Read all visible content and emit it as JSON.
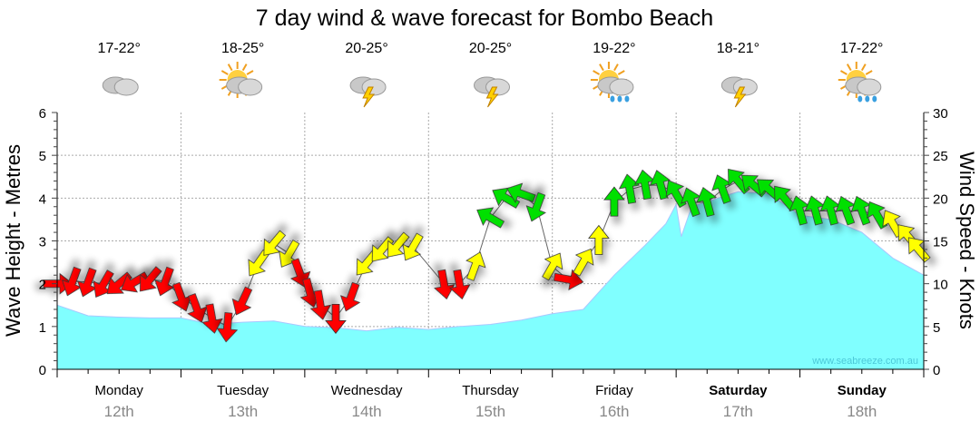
{
  "chart_data": {
    "type": "area",
    "title": "7 day wind & wave forecast for Bombo Beach",
    "ylabel_left": "Wave Height - Metres",
    "ylabel_right": "Wind Speed - Knots",
    "ylim_left": [
      0,
      6
    ],
    "ylim_right": [
      0,
      30
    ],
    "yticks_left": [
      "0",
      "1",
      "2",
      "3",
      "4",
      "5",
      "6"
    ],
    "yticks_right": [
      "0",
      "5",
      "10",
      "15",
      "20",
      "25",
      "30"
    ],
    "grid": true,
    "watermark": "www.seabreeze.com.au",
    "days": [
      {
        "name": "Monday",
        "date": "12th",
        "temp": "17-22°",
        "weather": "cloudy",
        "bold": false
      },
      {
        "name": "Tuesday",
        "date": "13th",
        "temp": "18-25°",
        "weather": "partly-cloudy",
        "bold": false
      },
      {
        "name": "Wednesday",
        "date": "14th",
        "temp": "20-25°",
        "weather": "storm",
        "bold": false
      },
      {
        "name": "Thursday",
        "date": "15th",
        "temp": "20-25°",
        "weather": "storm",
        "bold": false
      },
      {
        "name": "Friday",
        "date": "16th",
        "temp": "19-22°",
        "weather": "sun-showers",
        "bold": false
      },
      {
        "name": "Saturday",
        "date": "17th",
        "temp": "18-21°",
        "weather": "storm",
        "bold": true
      },
      {
        "name": "Sunday",
        "date": "18th",
        "temp": "17-22°",
        "weather": "sun-showers",
        "bold": true
      }
    ],
    "wave_series": {
      "name": "Wave Height (m)",
      "hours": [
        0,
        6,
        12,
        18,
        24,
        30,
        36,
        42,
        48,
        54,
        60,
        66,
        72,
        78,
        84,
        90,
        96,
        102,
        108,
        114,
        118,
        120,
        121,
        123,
        132,
        138,
        144,
        150,
        156,
        162,
        168
      ],
      "values": [
        1.5,
        1.25,
        1.22,
        1.2,
        1.2,
        1.05,
        1.1,
        1.13,
        1.0,
        0.97,
        0.9,
        0.98,
        0.93,
        1.0,
        1.05,
        1.15,
        1.3,
        1.4,
        2.2,
        2.9,
        3.4,
        3.85,
        3.1,
        3.8,
        4.15,
        4.1,
        3.6,
        3.5,
        3.2,
        2.6,
        2.2
      ]
    },
    "wind_series": {
      "name": "Wind Speed (knots)",
      "colors": {
        "light": "#ff0000",
        "moderate": "#ffff00",
        "strong": "#00e000"
      },
      "points": [
        {
          "h": 0,
          "kn": 10,
          "dir": 90,
          "c": "light"
        },
        {
          "h": 3,
          "kn": 10.3,
          "dir": 200,
          "c": "light"
        },
        {
          "h": 6,
          "kn": 10.2,
          "dir": 200,
          "c": "light"
        },
        {
          "h": 9,
          "kn": 10.0,
          "dir": 210,
          "c": "light"
        },
        {
          "h": 12,
          "kn": 10.0,
          "dir": 230,
          "c": "light"
        },
        {
          "h": 15,
          "kn": 10.2,
          "dir": 240,
          "c": "light"
        },
        {
          "h": 18,
          "kn": 10.5,
          "dir": 220,
          "c": "light"
        },
        {
          "h": 21,
          "kn": 10.3,
          "dir": 200,
          "c": "light"
        },
        {
          "h": 24,
          "kn": 8.5,
          "dir": 160,
          "c": "light"
        },
        {
          "h": 27,
          "kn": 7.2,
          "dir": 160,
          "c": "light"
        },
        {
          "h": 30,
          "kn": 6.0,
          "dir": 170,
          "c": "light"
        },
        {
          "h": 33,
          "kn": 5.0,
          "dir": 185,
          "c": "light"
        },
        {
          "h": 36,
          "kn": 8.0,
          "dir": 205,
          "c": "light"
        },
        {
          "h": 39,
          "kn": 12.4,
          "dir": 215,
          "c": "moderate"
        },
        {
          "h": 42,
          "kn": 14.7,
          "dir": 220,
          "c": "moderate"
        },
        {
          "h": 45,
          "kn": 13.5,
          "dir": 210,
          "c": "moderate"
        },
        {
          "h": 47,
          "kn": 11.3,
          "dir": 160,
          "c": "light"
        },
        {
          "h": 49,
          "kn": 9.0,
          "dir": 165,
          "c": "light"
        },
        {
          "h": 51,
          "kn": 7.6,
          "dir": 170,
          "c": "light"
        },
        {
          "h": 54,
          "kn": 6.0,
          "dir": 180,
          "c": "light"
        },
        {
          "h": 57,
          "kn": 8.5,
          "dir": 200,
          "c": "light"
        },
        {
          "h": 60,
          "kn": 12.4,
          "dir": 220,
          "c": "moderate"
        },
        {
          "h": 63,
          "kn": 14.0,
          "dir": 220,
          "c": "moderate"
        },
        {
          "h": 66,
          "kn": 14.5,
          "dir": 220,
          "c": "moderate"
        },
        {
          "h": 69,
          "kn": 14.3,
          "dir": 210,
          "c": "moderate"
        },
        {
          "h": 75,
          "kn": 10.0,
          "dir": 170,
          "c": "light"
        },
        {
          "h": 78,
          "kn": 10.0,
          "dir": 170,
          "c": "light"
        },
        {
          "h": 81,
          "kn": 12.0,
          "dir": 20,
          "c": "moderate"
        },
        {
          "h": 84,
          "kn": 17.7,
          "dir": 300,
          "c": "strong"
        },
        {
          "h": 87,
          "kn": 20.0,
          "dir": 300,
          "c": "strong"
        },
        {
          "h": 90,
          "kn": 20.5,
          "dir": 290,
          "c": "strong"
        },
        {
          "h": 93,
          "kn": 19.0,
          "dir": 200,
          "c": "strong"
        },
        {
          "h": 96,
          "kn": 12.0,
          "dir": 30,
          "c": "moderate"
        },
        {
          "h": 99,
          "kn": 10.5,
          "dir": 100,
          "c": "light"
        },
        {
          "h": 102,
          "kn": 12.5,
          "dir": 30,
          "c": "moderate"
        },
        {
          "h": 105,
          "kn": 15.0,
          "dir": 0,
          "c": "moderate"
        },
        {
          "h": 108,
          "kn": 19.5,
          "dir": 0,
          "c": "strong"
        },
        {
          "h": 111,
          "kn": 21.0,
          "dir": 350,
          "c": "strong"
        },
        {
          "h": 114,
          "kn": 21.5,
          "dir": 350,
          "c": "strong"
        },
        {
          "h": 117,
          "kn": 21.5,
          "dir": 345,
          "c": "strong"
        },
        {
          "h": 120,
          "kn": 20.5,
          "dir": 330,
          "c": "strong"
        },
        {
          "h": 123,
          "kn": 19.5,
          "dir": 340,
          "c": "strong"
        },
        {
          "h": 126,
          "kn": 19.5,
          "dir": 345,
          "c": "strong"
        },
        {
          "h": 129,
          "kn": 21.0,
          "dir": 340,
          "c": "strong"
        },
        {
          "h": 132,
          "kn": 22.0,
          "dir": 320,
          "c": "strong"
        },
        {
          "h": 135,
          "kn": 21.5,
          "dir": 310,
          "c": "strong"
        },
        {
          "h": 138,
          "kn": 21.0,
          "dir": 310,
          "c": "strong"
        },
        {
          "h": 141,
          "kn": 20.0,
          "dir": 320,
          "c": "strong"
        },
        {
          "h": 144,
          "kn": 18.5,
          "dir": 345,
          "c": "strong"
        },
        {
          "h": 147,
          "kn": 18.5,
          "dir": 345,
          "c": "strong"
        },
        {
          "h": 150,
          "kn": 18.5,
          "dir": 345,
          "c": "strong"
        },
        {
          "h": 153,
          "kn": 18.5,
          "dir": 340,
          "c": "strong"
        },
        {
          "h": 156,
          "kn": 18.5,
          "dir": 340,
          "c": "strong"
        },
        {
          "h": 159,
          "kn": 18.0,
          "dir": 330,
          "c": "strong"
        },
        {
          "h": 162,
          "kn": 17.0,
          "dir": 330,
          "c": "moderate"
        },
        {
          "h": 165,
          "kn": 15.5,
          "dir": 320,
          "c": "moderate"
        },
        {
          "h": 167,
          "kn": 14.0,
          "dir": 320,
          "c": "moderate"
        }
      ]
    }
  }
}
